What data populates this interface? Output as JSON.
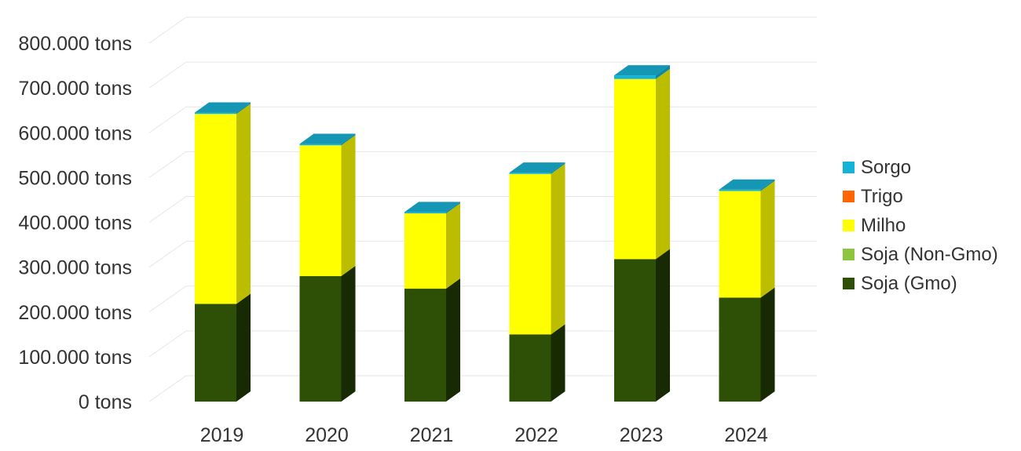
{
  "chart_data": {
    "type": "bar",
    "stacked": true,
    "style": "3d",
    "categories": [
      "2019",
      "2020",
      "2021",
      "2022",
      "2023",
      "2024"
    ],
    "series": [
      {
        "name": "Soja (Gmo)",
        "color": "#2d5006",
        "side_color": "#172a03",
        "values": [
          218000,
          280000,
          252000,
          150000,
          318000,
          232000
        ]
      },
      {
        "name": "Soja (Non-Gmo)",
        "color": "#8cc63f",
        "side_color": "#5f8a2a",
        "values": [
          0,
          0,
          0,
          0,
          0,
          0
        ]
      },
      {
        "name": "Milho",
        "color": "#ffff00",
        "side_color": "#bdbd00",
        "values": [
          424000,
          292000,
          168000,
          358000,
          402000,
          238000
        ]
      },
      {
        "name": "Trigo",
        "color": "#ff6600",
        "side_color": "#b34700",
        "values": [
          0,
          0,
          0,
          0,
          0,
          0
        ]
      },
      {
        "name": "Sorgo",
        "color": "#14b4d8",
        "side_color": "#0b87a3",
        "values": [
          3000,
          3000,
          3000,
          3000,
          8000,
          3000
        ]
      }
    ],
    "top_face_color": "#1496b4",
    "y_ticks": [
      "0 tons",
      "100.000 tons",
      "200.000 tons",
      "300.000 tons",
      "400.000 tons",
      "500.000 tons",
      "600.000 tons",
      "700.000 tons",
      "800.000 tons"
    ],
    "ylim": [
      0,
      800000
    ],
    "grid": true,
    "legend_position": "right",
    "legend_order": [
      "Sorgo",
      "Trigo",
      "Milho",
      "Soja (Non-Gmo)",
      "Soja (Gmo)"
    ]
  }
}
